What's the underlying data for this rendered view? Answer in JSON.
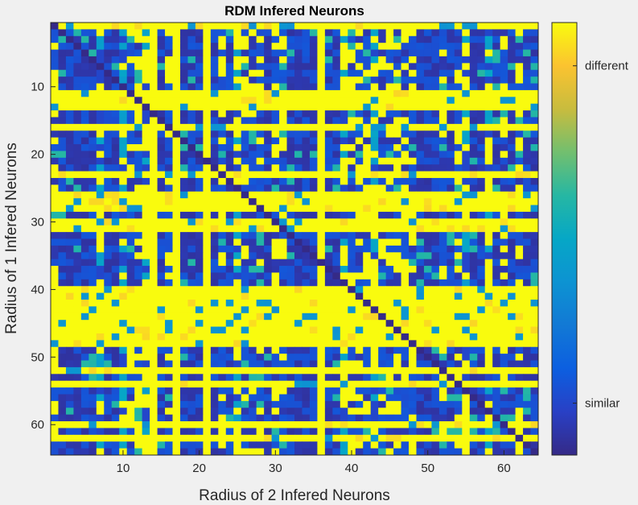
{
  "chart_data": {
    "type": "heatmap",
    "title": "RDM Infered Neurons",
    "xlabel": "Radius of 2 Infered Neurons",
    "ylabel": "Radius of 1 Infered Neurons",
    "size": 64,
    "xlim": [
      0.5,
      64.5
    ],
    "ylim": [
      0.5,
      64.5
    ],
    "xticks": [
      10,
      20,
      30,
      40,
      50,
      60
    ],
    "yticks": [
      10,
      20,
      30,
      40,
      50,
      60
    ],
    "colormap": "parula",
    "colorbar": {
      "ticks": [
        {
          "value": 0.12,
          "label": "similar"
        },
        {
          "value": 0.9,
          "label": "different"
        }
      ]
    },
    "colors": {
      "low": "#352a87",
      "mid": "#0fb2c7",
      "high": "#f9fb0e",
      "background": "#f0f0f0"
    },
    "high_rows": [
      1,
      11,
      12,
      13,
      16,
      23,
      26,
      27,
      28,
      30,
      31,
      40,
      41,
      42,
      43,
      44,
      45,
      46,
      47,
      48,
      52,
      54,
      60,
      62
    ],
    "high_cols": [
      14,
      17,
      21,
      36
    ],
    "partial_cols": [
      7,
      10,
      13,
      25,
      39,
      43,
      55,
      58
    ],
    "noise_seed": 7
  }
}
